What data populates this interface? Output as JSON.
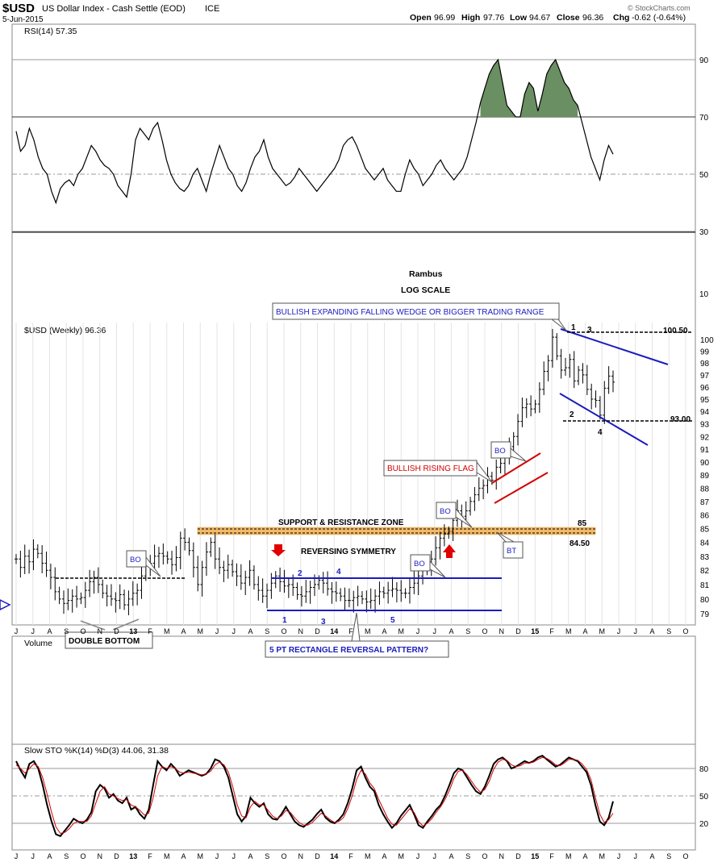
{
  "header": {
    "symbol": "$USD",
    "name": "US Dollar Index - Cash Settle (EOD)",
    "exchange": "ICE",
    "date": "5-Jun-2015",
    "credit": "© StockCharts.com",
    "quote": {
      "open_label": "Open",
      "open": "96.99",
      "high_label": "High",
      "high": "97.76",
      "low_label": "Low",
      "low": "94.67",
      "close_label": "Close",
      "close": "96.36",
      "chg_label": "Chg",
      "chg": "-0.62 (-0.64%)"
    }
  },
  "colors": {
    "grid": "#c8c8c8",
    "price": "#000000",
    "trend": "#1c1cbe",
    "flag": "#d40000",
    "zone": "#f2b968",
    "rsi_fill": "#6a8f62",
    "stoch_d": "#d40000"
  },
  "annotations": {
    "author": "Rambus",
    "scale": "LOG SCALE",
    "wedge": "BULLISH EXPANDING FALLING WEDGE OR BIGGER TRADING RANGE",
    "flag": "BULLISH RISING FLAG",
    "zone": "SUPPORT & RESISTANCE ZONE",
    "reversing": "REVERSING SYMMETRY",
    "rectangle": "5 PT RECTANGLE REVERSAL PATTERN?",
    "double_bottom": "DOUBLE BOTTOM",
    "bo": "BO",
    "bt": "BT",
    "level_100": "100.50",
    "level_93": "93.00",
    "level_85": "85",
    "level_845": "84.50",
    "points_wedge": [
      "1",
      "2",
      "3",
      "4"
    ],
    "points_rect": [
      "1",
      "2",
      "3",
      "4",
      "5"
    ]
  },
  "chart_data": [
    {
      "type": "line",
      "panel": "rsi",
      "title": "RSI(14) 57.35",
      "ylim": [
        0,
        100
      ],
      "levels": [
        30,
        50,
        70,
        90
      ],
      "tick_labels": [
        "90",
        "70",
        "50",
        "30",
        "10"
      ],
      "values": [
        65,
        58,
        60,
        66,
        62,
        56,
        52,
        50,
        44,
        40,
        45,
        47,
        48,
        46,
        50,
        52,
        56,
        60,
        58,
        55,
        53,
        52,
        50,
        46,
        44,
        42,
        50,
        62,
        66,
        64,
        62,
        66,
        68,
        62,
        55,
        50,
        47,
        45,
        44,
        46,
        50,
        52,
        48,
        44,
        50,
        55,
        60,
        56,
        52,
        50,
        46,
        44,
        47,
        52,
        56,
        58,
        62,
        56,
        52,
        50,
        48,
        46,
        47,
        49,
        52,
        50,
        48,
        46,
        44,
        46,
        48,
        50,
        52,
        55,
        60,
        62,
        63,
        60,
        56,
        52,
        50,
        48,
        50,
        52,
        48,
        46,
        44,
        44,
        50,
        55,
        52,
        50,
        46,
        48,
        50,
        53,
        55,
        52,
        50,
        48,
        50,
        52,
        56,
        62,
        68,
        75,
        80,
        85,
        88,
        90,
        82,
        74,
        72,
        70,
        70,
        78,
        82,
        80,
        72,
        78,
        85,
        88,
        90,
        86,
        82,
        80,
        76,
        74,
        68,
        62,
        56,
        52,
        48,
        55,
        60,
        57
      ]
    },
    {
      "type": "bar",
      "panel": "price",
      "title": "$USD (Weekly) 96.36",
      "scale": "log",
      "ylim": [
        78.5,
        101
      ],
      "tick_labels": [
        "100",
        "99",
        "98",
        "97",
        "96",
        "95",
        "94",
        "93",
        "92",
        "91",
        "90",
        "89",
        "88",
        "87",
        "86",
        "85",
        "84",
        "83",
        "82",
        "81",
        "80",
        "79"
      ],
      "x_labels": [
        "J",
        "J",
        "A",
        "S",
        "O",
        "N",
        "D",
        "13",
        "F",
        "M",
        "A",
        "M",
        "J",
        "J",
        "A",
        "S",
        "O",
        "N",
        "D",
        "14",
        "F",
        "M",
        "A",
        "M",
        "J",
        "J",
        "A",
        "S",
        "O",
        "N",
        "D",
        "15",
        "F",
        "M",
        "A",
        "M",
        "J",
        "J",
        "A",
        "S",
        "O"
      ],
      "close": [
        82.8,
        82.2,
        83.0,
        82.6,
        83.5,
        83.2,
        82.5,
        82.0,
        81.5,
        80.5,
        80.0,
        79.7,
        79.9,
        80.2,
        80.0,
        80.1,
        80.6,
        81.2,
        81.5,
        81.0,
        80.4,
        80.2,
        80.0,
        79.9,
        80.3,
        79.6,
        80.0,
        80.4,
        80.6,
        81.6,
        82.3,
        82.5,
        83.0,
        83.2,
        83.0,
        82.8,
        82.4,
        82.9,
        84.3,
        84.0,
        83.4,
        82.2,
        81.0,
        82.2,
        83.3,
        84.0,
        82.8,
        82.2,
        82.0,
        82.4,
        81.9,
        81.6,
        81.1,
        81.5,
        82.0,
        81.0,
        80.6,
        80.2,
        80.6,
        81.1,
        81.6,
        81.2,
        80.9,
        81.0,
        80.8,
        80.3,
        80.2,
        80.5,
        80.8,
        81.0,
        81.3,
        81.1,
        80.7,
        80.5,
        80.4,
        80.2,
        79.9,
        79.9,
        80.1,
        80.2,
        80.0,
        79.8,
        79.9,
        80.2,
        80.5,
        80.4,
        80.6,
        80.7,
        80.6,
        80.4,
        80.4,
        80.8,
        81.1,
        81.6,
        82.0,
        82.3,
        82.8,
        83.6,
        84.3,
        84.6,
        84.8,
        85.6,
        86.3,
        85.9,
        86.3,
        87.0,
        87.5,
        88.0,
        88.2,
        88.9,
        88.6,
        89.6,
        89.9,
        90.4,
        91.2,
        92.0,
        93.2,
        94.3,
        94.6,
        94.2,
        94.6,
        95.8,
        97.3,
        98.2,
        100.2,
        98.6,
        97.4,
        97.6,
        98.3,
        96.5,
        97.4,
        97.0,
        95.8,
        95.0,
        94.9,
        93.7,
        95.9,
        96.9,
        96.4
      ]
    },
    {
      "type": "line",
      "panel": "volume",
      "title": "Volume"
    },
    {
      "type": "line",
      "panel": "stochastic",
      "title": "Slow STO %K(14) %D(3) 44.06, 31.38",
      "ylim": [
        0,
        100
      ],
      "levels": [
        20,
        50,
        80
      ],
      "tick_labels": [
        "80",
        "50",
        "20"
      ],
      "series": [
        {
          "name": "%K",
          "values": [
            88,
            78,
            70,
            85,
            88,
            80,
            62,
            40,
            22,
            8,
            6,
            12,
            18,
            25,
            22,
            20,
            24,
            32,
            55,
            62,
            58,
            48,
            52,
            45,
            42,
            48,
            35,
            38,
            30,
            25,
            35,
            62,
            88,
            82,
            78,
            85,
            80,
            72,
            75,
            78,
            76,
            74,
            72,
            74,
            80,
            90,
            88,
            82,
            70,
            50,
            30,
            22,
            28,
            48,
            42,
            38,
            42,
            30,
            25,
            24,
            30,
            38,
            30,
            22,
            18,
            16,
            20,
            24,
            30,
            35,
            26,
            22,
            20,
            24,
            30,
            42,
            58,
            78,
            82,
            70,
            60,
            55,
            40,
            30,
            22,
            15,
            20,
            28,
            34,
            40,
            30,
            18,
            15,
            22,
            28,
            35,
            40,
            50,
            62,
            75,
            80,
            78,
            70,
            62,
            55,
            52,
            60,
            72,
            85,
            90,
            92,
            88,
            80,
            82,
            85,
            88,
            86,
            88,
            92,
            94,
            90,
            86,
            82,
            84,
            88,
            92,
            90,
            88,
            82,
            76,
            62,
            40,
            22,
            18,
            26,
            44
          ]
        },
        {
          "name": "%D",
          "values": [
            84,
            80,
            75,
            80,
            85,
            82,
            70,
            52,
            32,
            16,
            9,
            10,
            14,
            20,
            22,
            22,
            22,
            28,
            42,
            55,
            60,
            52,
            50,
            47,
            45,
            46,
            40,
            38,
            34,
            29,
            31,
            48,
            72,
            82,
            80,
            82,
            80,
            76,
            75,
            76,
            75,
            74,
            73,
            74,
            77,
            84,
            87,
            84,
            76,
            60,
            40,
            28,
            26,
            38,
            44,
            40,
            40,
            34,
            28,
            25,
            28,
            34,
            32,
            26,
            21,
            18,
            18,
            21,
            26,
            31,
            28,
            24,
            21,
            22,
            26,
            36,
            50,
            68,
            78,
            74,
            64,
            58,
            46,
            36,
            26,
            19,
            18,
            24,
            30,
            36,
            32,
            22,
            17,
            20,
            25,
            32,
            38,
            46,
            56,
            69,
            77,
            78,
            73,
            66,
            59,
            54,
            57,
            66,
            79,
            87,
            90,
            89,
            84,
            82,
            83,
            86,
            86,
            87,
            90,
            92,
            91,
            88,
            84,
            83,
            86,
            90,
            90,
            89,
            85,
            79,
            68,
            48,
            30,
            21,
            24,
            31
          ]
        }
      ]
    }
  ]
}
